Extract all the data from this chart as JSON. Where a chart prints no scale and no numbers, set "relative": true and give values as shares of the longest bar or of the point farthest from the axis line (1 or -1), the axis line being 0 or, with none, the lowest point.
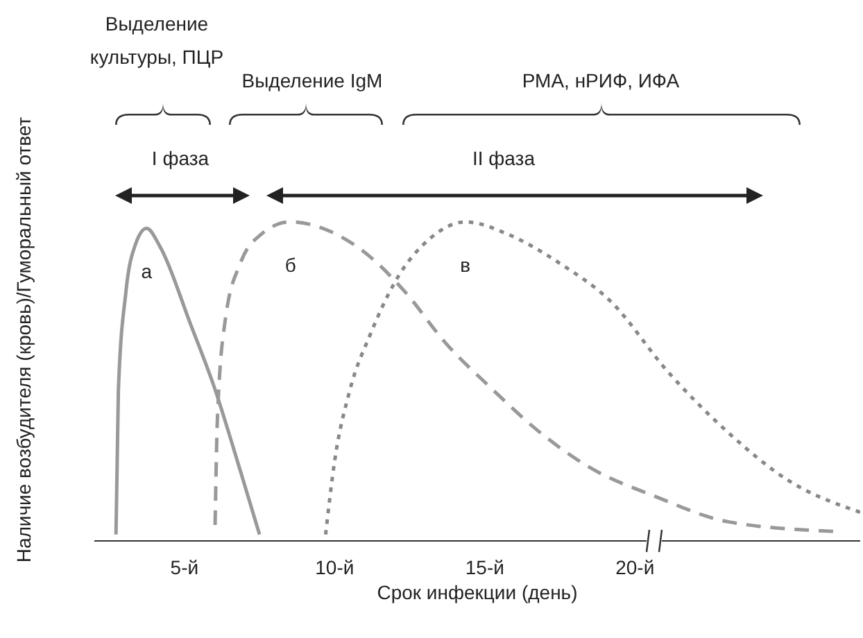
{
  "chart_data": {
    "type": "line",
    "relative": true,
    "xlabel": "Срок инфекции (день)",
    "ylabel": "Наличие возбудителя (кровь)/Гуморальный ответ",
    "xlim": [
      2,
      27.5
    ],
    "xticks": [
      {
        "value": 5,
        "label": "5-й"
      },
      {
        "value": 10,
        "label": "10-й"
      },
      {
        "value": 15,
        "label": "15-й"
      },
      {
        "value": 20,
        "label": "20-й"
      }
    ],
    "annotations": [
      "Выделение культуры, ПЦР",
      "Выделение IgM",
      "РМА, нРИФ, ИФА",
      "I фаза",
      "II фаза"
    ],
    "series": [
      {
        "name": "а",
        "color": "#999999",
        "line_style": "solid",
        "x": [
          2.72,
          2.8,
          3.05,
          3.37,
          3.74,
          4.2,
          5.2,
          6.0,
          6.86,
          7.5
        ],
        "values": [
          0.02,
          0.47,
          0.78,
          0.93,
          0.98,
          0.92,
          0.68,
          0.48,
          0.22,
          0.02
        ]
      },
      {
        "name": "б",
        "color": "#999999",
        "line_style": "dashed",
        "x": [
          6.02,
          6.1,
          6.37,
          6.86,
          7.54,
          8.53,
          9.86,
          11.19,
          12.35,
          13.7,
          15.2,
          16.84,
          18.5,
          20.66,
          23.1,
          26.6
        ],
        "values": [
          0.05,
          0.39,
          0.7,
          0.87,
          0.96,
          1.0,
          0.97,
          0.89,
          0.78,
          0.62,
          0.48,
          0.34,
          0.23,
          0.14,
          0.06,
          0.03
        ]
      },
      {
        "name": "в",
        "color": "#888888",
        "line_style": "dotted",
        "x": [
          9.7,
          10.0,
          10.5,
          11.2,
          12.0,
          13.2,
          14.35,
          15.8,
          17.5,
          19.2,
          21.1,
          23.1,
          25.1,
          27.5
        ],
        "values": [
          0.02,
          0.25,
          0.47,
          0.65,
          0.81,
          0.95,
          1.0,
          0.96,
          0.87,
          0.75,
          0.53,
          0.34,
          0.19,
          0.09
        ]
      }
    ]
  }
}
